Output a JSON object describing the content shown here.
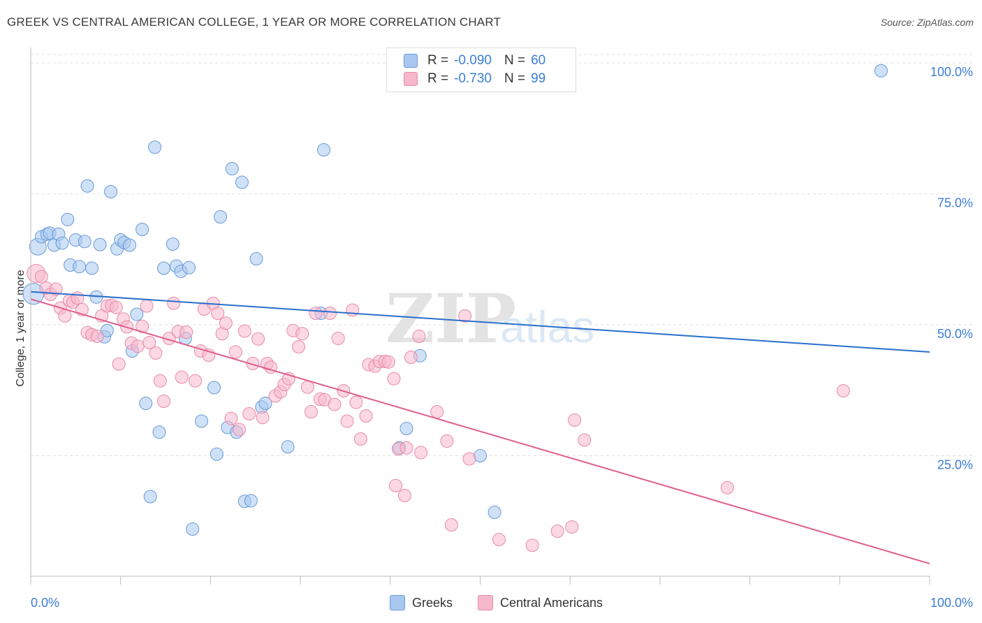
{
  "header": {
    "title": "GREEK VS CENTRAL AMERICAN COLLEGE, 1 YEAR OR MORE CORRELATION CHART",
    "source": "Source: ZipAtlas.com"
  },
  "watermark": {
    "zip": "ZIP",
    "atlas": "atlas"
  },
  "legend": {
    "rows": [
      {
        "r_label": "R = ",
        "r_value": "-0.090",
        "n_label": "N = ",
        "n_value": "60"
      },
      {
        "r_label": "R = ",
        "r_value": "-0.730",
        "n_label": "N = ",
        "n_value": "99"
      }
    ]
  },
  "colors": {
    "greeks_fill": "#a8c8f0",
    "greeks_stroke": "#6a9ad8",
    "greeks_line": "#2a6fcc",
    "central_fill": "#f7b8cc",
    "central_stroke": "#e88aa8",
    "central_line": "#e0608e",
    "axis_label": "#3b7dd8",
    "grid": "#dddddd"
  },
  "chart_data": {
    "type": "scatter",
    "title": "GREEK VS CENTRAL AMERICAN COLLEGE, 1 YEAR OR MORE CORRELATION CHART",
    "xlabel": "",
    "ylabel": "College, 1 year or more",
    "xlim": [
      0,
      100
    ],
    "ylim": [
      2,
      104
    ],
    "x_tick_labels": [
      "0.0%",
      "100.0%"
    ],
    "y_ticks": [
      25,
      50,
      75,
      100
    ],
    "y_tick_labels": [
      "25.0%",
      "50.0%",
      "75.0%",
      "100.0%"
    ],
    "grid": true,
    "series": [
      {
        "name": "Greeks",
        "r": -0.09,
        "n": 60,
        "trend": {
          "x": [
            0,
            100
          ],
          "y": [
            56.3,
            44.8
          ]
        },
        "points": [
          {
            "x": 0.3,
            "y": 55.9,
            "s": 15
          },
          {
            "x": 0.8,
            "y": 64.9,
            "s": 12
          },
          {
            "x": 1.2,
            "y": 66.8,
            "s": 9
          },
          {
            "x": 1.8,
            "y": 67.3,
            "s": 9
          },
          {
            "x": 2.1,
            "y": 67.5,
            "s": 9
          },
          {
            "x": 2.6,
            "y": 65.2,
            "s": 9
          },
          {
            "x": 3.1,
            "y": 67.3,
            "s": 9
          },
          {
            "x": 3.5,
            "y": 65.6,
            "s": 9
          },
          {
            "x": 4.1,
            "y": 70.1,
            "s": 9
          },
          {
            "x": 4.4,
            "y": 61.4,
            "s": 9
          },
          {
            "x": 5.0,
            "y": 66.2,
            "s": 9
          },
          {
            "x": 5.4,
            "y": 61.1,
            "s": 9
          },
          {
            "x": 6.0,
            "y": 65.9,
            "s": 9
          },
          {
            "x": 6.3,
            "y": 76.5,
            "s": 9
          },
          {
            "x": 6.8,
            "y": 60.8,
            "s": 9
          },
          {
            "x": 7.3,
            "y": 55.3,
            "s": 9
          },
          {
            "x": 7.7,
            "y": 65.3,
            "s": 9
          },
          {
            "x": 8.2,
            "y": 47.7,
            "s": 9
          },
          {
            "x": 8.5,
            "y": 48.9,
            "s": 9
          },
          {
            "x": 8.9,
            "y": 75.4,
            "s": 9
          },
          {
            "x": 9.6,
            "y": 64.5,
            "s": 9
          },
          {
            "x": 10.0,
            "y": 66.2,
            "s": 9
          },
          {
            "x": 10.4,
            "y": 65.7,
            "s": 9
          },
          {
            "x": 11.0,
            "y": 65.2,
            "s": 9
          },
          {
            "x": 11.3,
            "y": 45.0,
            "s": 9
          },
          {
            "x": 11.8,
            "y": 52.0,
            "s": 9
          },
          {
            "x": 12.4,
            "y": 68.2,
            "s": 9
          },
          {
            "x": 12.8,
            "y": 35.0,
            "s": 9
          },
          {
            "x": 13.3,
            "y": 17.2,
            "s": 9
          },
          {
            "x": 13.8,
            "y": 83.9,
            "s": 9
          },
          {
            "x": 14.3,
            "y": 29.5,
            "s": 9
          },
          {
            "x": 14.8,
            "y": 60.8,
            "s": 9
          },
          {
            "x": 15.8,
            "y": 65.4,
            "s": 9
          },
          {
            "x": 16.2,
            "y": 61.2,
            "s": 9
          },
          {
            "x": 16.7,
            "y": 60.2,
            "s": 9
          },
          {
            "x": 17.2,
            "y": 47.4,
            "s": 9
          },
          {
            "x": 17.6,
            "y": 60.9,
            "s": 9
          },
          {
            "x": 18.0,
            "y": 11.0,
            "s": 9
          },
          {
            "x": 19.0,
            "y": 31.6,
            "s": 9
          },
          {
            "x": 20.4,
            "y": 38.0,
            "s": 9
          },
          {
            "x": 20.7,
            "y": 25.3,
            "s": 9
          },
          {
            "x": 21.1,
            "y": 70.6,
            "s": 9
          },
          {
            "x": 21.9,
            "y": 30.4,
            "s": 9
          },
          {
            "x": 22.4,
            "y": 79.8,
            "s": 9
          },
          {
            "x": 22.9,
            "y": 29.5,
            "s": 9
          },
          {
            "x": 23.5,
            "y": 77.2,
            "s": 9
          },
          {
            "x": 23.8,
            "y": 16.3,
            "s": 9
          },
          {
            "x": 24.5,
            "y": 16.4,
            "s": 9
          },
          {
            "x": 25.1,
            "y": 62.6,
            "s": 9
          },
          {
            "x": 25.7,
            "y": 34.3,
            "s": 9
          },
          {
            "x": 26.1,
            "y": 35.0,
            "s": 9
          },
          {
            "x": 28.6,
            "y": 26.7,
            "s": 9
          },
          {
            "x": 32.3,
            "y": 52.2,
            "s": 9
          },
          {
            "x": 32.6,
            "y": 83.4,
            "s": 9
          },
          {
            "x": 41.0,
            "y": 26.5,
            "s": 9
          },
          {
            "x": 41.8,
            "y": 30.2,
            "s": 9
          },
          {
            "x": 43.3,
            "y": 44.1,
            "s": 9
          },
          {
            "x": 50.0,
            "y": 25.0,
            "s": 9
          },
          {
            "x": 51.6,
            "y": 14.2,
            "s": 9
          },
          {
            "x": 94.6,
            "y": 98.5,
            "s": 9
          }
        ]
      },
      {
        "name": "Central Americans",
        "r": -0.73,
        "n": 99,
        "trend": {
          "x": [
            0,
            100
          ],
          "y": [
            54.9,
            4.4
          ]
        },
        "points": [
          {
            "x": 0.6,
            "y": 59.8,
            "s": 13
          },
          {
            "x": 1.2,
            "y": 59.2,
            "s": 9
          },
          {
            "x": 1.7,
            "y": 57.0,
            "s": 9
          },
          {
            "x": 2.2,
            "y": 55.8,
            "s": 9
          },
          {
            "x": 2.8,
            "y": 56.8,
            "s": 9
          },
          {
            "x": 3.3,
            "y": 53.2,
            "s": 9
          },
          {
            "x": 3.8,
            "y": 51.7,
            "s": 9
          },
          {
            "x": 4.3,
            "y": 54.6,
            "s": 9
          },
          {
            "x": 4.7,
            "y": 54.3,
            "s": 9
          },
          {
            "x": 5.2,
            "y": 55.1,
            "s": 9
          },
          {
            "x": 5.7,
            "y": 52.9,
            "s": 9
          },
          {
            "x": 6.3,
            "y": 48.5,
            "s": 9
          },
          {
            "x": 6.8,
            "y": 48.1,
            "s": 9
          },
          {
            "x": 7.4,
            "y": 47.8,
            "s": 9
          },
          {
            "x": 7.9,
            "y": 51.7,
            "s": 9
          },
          {
            "x": 8.5,
            "y": 53.6,
            "s": 9
          },
          {
            "x": 9.0,
            "y": 53.7,
            "s": 9
          },
          {
            "x": 9.5,
            "y": 53.3,
            "s": 9
          },
          {
            "x": 9.8,
            "y": 42.5,
            "s": 9
          },
          {
            "x": 10.3,
            "y": 51.1,
            "s": 9
          },
          {
            "x": 10.7,
            "y": 49.6,
            "s": 9
          },
          {
            "x": 11.2,
            "y": 46.5,
            "s": 9
          },
          {
            "x": 11.9,
            "y": 45.9,
            "s": 9
          },
          {
            "x": 12.4,
            "y": 49.7,
            "s": 9
          },
          {
            "x": 12.9,
            "y": 53.6,
            "s": 9
          },
          {
            "x": 13.2,
            "y": 46.6,
            "s": 9
          },
          {
            "x": 13.9,
            "y": 44.6,
            "s": 9
          },
          {
            "x": 14.4,
            "y": 39.3,
            "s": 9
          },
          {
            "x": 14.8,
            "y": 35.4,
            "s": 9
          },
          {
            "x": 15.4,
            "y": 47.4,
            "s": 9
          },
          {
            "x": 15.9,
            "y": 54.1,
            "s": 9
          },
          {
            "x": 16.4,
            "y": 48.7,
            "s": 9
          },
          {
            "x": 16.8,
            "y": 40.0,
            "s": 9
          },
          {
            "x": 17.3,
            "y": 48.6,
            "s": 9
          },
          {
            "x": 18.3,
            "y": 39.3,
            "s": 9
          },
          {
            "x": 18.9,
            "y": 45.0,
            "s": 9
          },
          {
            "x": 19.3,
            "y": 53.0,
            "s": 9
          },
          {
            "x": 19.8,
            "y": 44.2,
            "s": 9
          },
          {
            "x": 20.3,
            "y": 54.1,
            "s": 9
          },
          {
            "x": 20.8,
            "y": 52.2,
            "s": 9
          },
          {
            "x": 21.3,
            "y": 48.3,
            "s": 9
          },
          {
            "x": 21.7,
            "y": 50.3,
            "s": 9
          },
          {
            "x": 22.3,
            "y": 32.1,
            "s": 9
          },
          {
            "x": 22.8,
            "y": 44.8,
            "s": 9
          },
          {
            "x": 23.2,
            "y": 30.0,
            "s": 9
          },
          {
            "x": 23.8,
            "y": 48.8,
            "s": 9
          },
          {
            "x": 24.3,
            "y": 33.0,
            "s": 9
          },
          {
            "x": 24.7,
            "y": 42.6,
            "s": 9
          },
          {
            "x": 25.3,
            "y": 47.3,
            "s": 9
          },
          {
            "x": 25.8,
            "y": 32.3,
            "s": 9
          },
          {
            "x": 26.3,
            "y": 42.6,
            "s": 9
          },
          {
            "x": 26.7,
            "y": 41.9,
            "s": 9
          },
          {
            "x": 27.2,
            "y": 36.4,
            "s": 9
          },
          {
            "x": 27.8,
            "y": 37.2,
            "s": 9
          },
          {
            "x": 28.2,
            "y": 38.6,
            "s": 9
          },
          {
            "x": 28.7,
            "y": 39.7,
            "s": 9
          },
          {
            "x": 29.2,
            "y": 48.9,
            "s": 9
          },
          {
            "x": 29.8,
            "y": 45.8,
            "s": 9
          },
          {
            "x": 30.2,
            "y": 48.3,
            "s": 9
          },
          {
            "x": 30.8,
            "y": 38.1,
            "s": 9
          },
          {
            "x": 31.2,
            "y": 33.4,
            "s": 9
          },
          {
            "x": 31.7,
            "y": 52.2,
            "s": 9
          },
          {
            "x": 32.2,
            "y": 35.8,
            "s": 9
          },
          {
            "x": 32.7,
            "y": 35.7,
            "s": 9
          },
          {
            "x": 33.3,
            "y": 52.2,
            "s": 9
          },
          {
            "x": 33.8,
            "y": 34.8,
            "s": 9
          },
          {
            "x": 34.2,
            "y": 47.4,
            "s": 9
          },
          {
            "x": 34.8,
            "y": 37.4,
            "s": 9
          },
          {
            "x": 35.2,
            "y": 31.6,
            "s": 9
          },
          {
            "x": 35.8,
            "y": 52.8,
            "s": 9
          },
          {
            "x": 36.2,
            "y": 35.2,
            "s": 9
          },
          {
            "x": 36.7,
            "y": 28.2,
            "s": 9
          },
          {
            "x": 37.3,
            "y": 32.6,
            "s": 9
          },
          {
            "x": 37.6,
            "y": 42.4,
            "s": 9
          },
          {
            "x": 38.3,
            "y": 42.1,
            "s": 9
          },
          {
            "x": 38.8,
            "y": 43.0,
            "s": 9
          },
          {
            "x": 39.4,
            "y": 43.0,
            "s": 9
          },
          {
            "x": 39.8,
            "y": 42.9,
            "s": 9
          },
          {
            "x": 40.4,
            "y": 39.7,
            "s": 9
          },
          {
            "x": 40.6,
            "y": 19.3,
            "s": 9
          },
          {
            "x": 40.9,
            "y": 26.3,
            "s": 9
          },
          {
            "x": 41.6,
            "y": 17.4,
            "s": 9
          },
          {
            "x": 41.8,
            "y": 26.5,
            "s": 9
          },
          {
            "x": 42.3,
            "y": 43.8,
            "s": 9
          },
          {
            "x": 43.2,
            "y": 47.8,
            "s": 9
          },
          {
            "x": 43.4,
            "y": 25.6,
            "s": 9
          },
          {
            "x": 45.2,
            "y": 33.4,
            "s": 9
          },
          {
            "x": 46.3,
            "y": 27.8,
            "s": 9
          },
          {
            "x": 46.8,
            "y": 11.8,
            "s": 9
          },
          {
            "x": 48.3,
            "y": 51.7,
            "s": 9
          },
          {
            "x": 48.8,
            "y": 24.4,
            "s": 9
          },
          {
            "x": 52.1,
            "y": 9.0,
            "s": 9
          },
          {
            "x": 55.8,
            "y": 7.9,
            "s": 9
          },
          {
            "x": 58.6,
            "y": 10.6,
            "s": 9
          },
          {
            "x": 60.2,
            "y": 11.4,
            "s": 9
          },
          {
            "x": 60.5,
            "y": 31.8,
            "s": 9
          },
          {
            "x": 61.6,
            "y": 28.0,
            "s": 9
          },
          {
            "x": 77.5,
            "y": 18.9,
            "s": 9
          },
          {
            "x": 90.4,
            "y": 37.4,
            "s": 9
          }
        ]
      }
    ]
  },
  "bottom_legend": {
    "series1": "Greeks",
    "series2": "Central Americans"
  }
}
